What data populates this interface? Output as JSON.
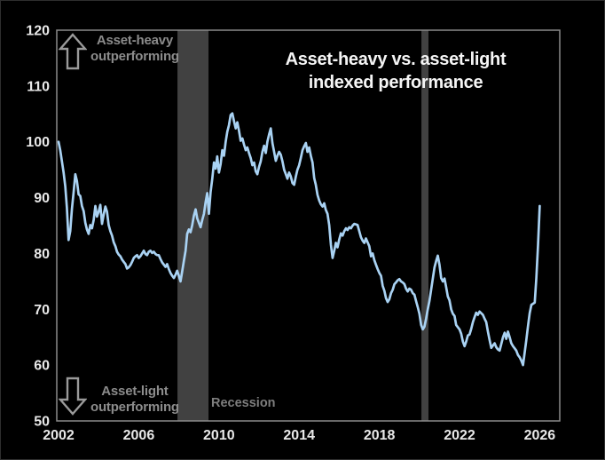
{
  "frame": {
    "background": "#000000",
    "border_color": "#2e2e2e"
  },
  "chart_data": {
    "type": "line",
    "title_lines": [
      "Asset-heavy vs. asset-light",
      "indexed performance"
    ],
    "x_axis": {
      "ticks": [
        2002,
        2006,
        2010,
        2014,
        2018,
        2022,
        2026
      ],
      "range": [
        2001.91,
        2027.0
      ],
      "label": ""
    },
    "y_axis": {
      "ticks": [
        50,
        60,
        70,
        80,
        90,
        100,
        110,
        120
      ],
      "range": [
        50,
        120
      ],
      "label": ""
    },
    "grid": false,
    "legend": false,
    "series": [
      {
        "name": "Asset-heavy vs. asset-light indexed performance",
        "color": "#a9d2f3",
        "start_year": 2002,
        "frequency": "monthly",
        "values": [
          100,
          98.5,
          96.5,
          94.5,
          92,
          88.2,
          82.4,
          84,
          88,
          91,
          94.2,
          93,
          90.6,
          90.3,
          88.5,
          87.6,
          85.5,
          84.3,
          83.5,
          85.1,
          84.5,
          86,
          88.5,
          86.6,
          87.5,
          88.7,
          85.3,
          87,
          88.4,
          87.5,
          85.1,
          84,
          83.2,
          82,
          81.3,
          80.3,
          79.8,
          79.5,
          78.9,
          78.5,
          78.1,
          77.3,
          77.5,
          77.9,
          78.5,
          79.2,
          79.5,
          79.7,
          79.2,
          79.5,
          80,
          80.5,
          79.9,
          79.7,
          80.3,
          80.5,
          80.1,
          80.3,
          79.9,
          79.7,
          79.7,
          79,
          78.4,
          78,
          77.6,
          78.1,
          77.2,
          76.5,
          76,
          75.6,
          76.2,
          76.9,
          76,
          75,
          76.8,
          78.7,
          80.5,
          83.5,
          84.3,
          83.8,
          85.1,
          86.8,
          87.9,
          86.3,
          85.5,
          84.7,
          86,
          87.1,
          89.2,
          90.8,
          87.1,
          91,
          93.4,
          96.3,
          95.2,
          97.4,
          94.5,
          96,
          98.5,
          97.5,
          100,
          101.8,
          103,
          104.8,
          105.1,
          103.7,
          102.4,
          103.5,
          102,
          100.2,
          100.6,
          99.5,
          98.5,
          99,
          98,
          97.1,
          95.8,
          96.3,
          94.7,
          94.2,
          95.5,
          96.5,
          98.2,
          99.3,
          98,
          100,
          101.3,
          102.4,
          99.8,
          98.2,
          96.6,
          97.5,
          98.2,
          97.7,
          96.5,
          95,
          94.2,
          93.4,
          94.5,
          93.8,
          92.6,
          92.3,
          93.8,
          95,
          95.8,
          97.1,
          98.5,
          99.2,
          99.8,
          98.2,
          99,
          97.5,
          96.3,
          93.5,
          92.3,
          90.5,
          89.5,
          88.8,
          88.4,
          89,
          87.8,
          87.1,
          85.1,
          81.6,
          79.2,
          80.5,
          81.9,
          81.1,
          82.5,
          83.6,
          83.2,
          84,
          84.5,
          84.2,
          84.7,
          84.5,
          85,
          85.3,
          85.2,
          85.1,
          84,
          82.9,
          82.3,
          81.9,
          82.7,
          82,
          81.3,
          79.5,
          80,
          78.8,
          78,
          77.2,
          76.5,
          76,
          74.2,
          73.3,
          72,
          71.3,
          71.8,
          72.9,
          73.5,
          74.5,
          74.8,
          75.2,
          75.4,
          75,
          74.8,
          74.5,
          73.7,
          73.2,
          73.7,
          73.5,
          72.9,
          72.6,
          71.5,
          70.4,
          69.2,
          67.2,
          66.4,
          66.9,
          68.3,
          70,
          71.5,
          73.5,
          75.5,
          77.5,
          78.6,
          79.6,
          78,
          75.6,
          75,
          75.5,
          74,
          72.3,
          71.6,
          70,
          69.2,
          68.8,
          67.2,
          66.8,
          66.4,
          65.6,
          64.2,
          63.4,
          64.2,
          65.3,
          65.5,
          66.5,
          67.7,
          68.6,
          69.4,
          69,
          69.6,
          69.3,
          69,
          68.3,
          67.7,
          66,
          64.5,
          63.1,
          63.5,
          63.9,
          63.2,
          62.8,
          62.6,
          63.8,
          65,
          65.8,
          64.7,
          66,
          65,
          63.9,
          63.4,
          63,
          62.6,
          61.8,
          61.4,
          60.8,
          60,
          62.3,
          64.5,
          67,
          69.3,
          70.8,
          71,
          71.2,
          75.6,
          81.5,
          88.5
        ]
      }
    ],
    "recession_bands": [
      {
        "from": 2007.93,
        "to": 2009.48
      },
      {
        "from": 2020.1,
        "to": 2020.45
      }
    ],
    "annotations": {
      "top": {
        "arrow": "up",
        "lines": [
          "Asset-heavy",
          "outperforming"
        ]
      },
      "bottom": {
        "arrow": "down",
        "lines": [
          "Asset-light",
          "outperforming"
        ]
      },
      "recession_label": "Recession"
    },
    "colors": {
      "line": "#a9d2f3",
      "band": "#414141",
      "axis_border": "#8a8a8a",
      "tick_text": "#e8e8e8",
      "title_text": "#f5f5f5",
      "annotation_text": "#8c8c8c",
      "arrow_outline": "#9a9a9a"
    }
  }
}
